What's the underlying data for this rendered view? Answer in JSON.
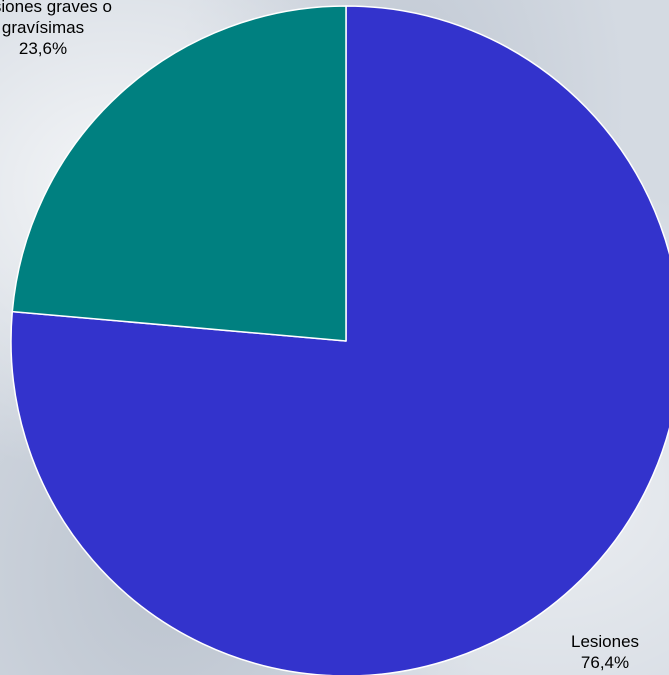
{
  "chart_data": {
    "type": "pie",
    "start_angle_deg": 0,
    "direction": "clockwise",
    "slices": [
      {
        "label_lines": [
          "Lesiones",
          "76,4%"
        ],
        "value": 76.4,
        "color": "#3333cc"
      },
      {
        "label_lines": [
          "Lesiones graves o",
          "gravísimas",
          "23,6%"
        ],
        "value": 23.6,
        "color": "#008080"
      }
    ],
    "slice_border_color": "#ffffff"
  }
}
